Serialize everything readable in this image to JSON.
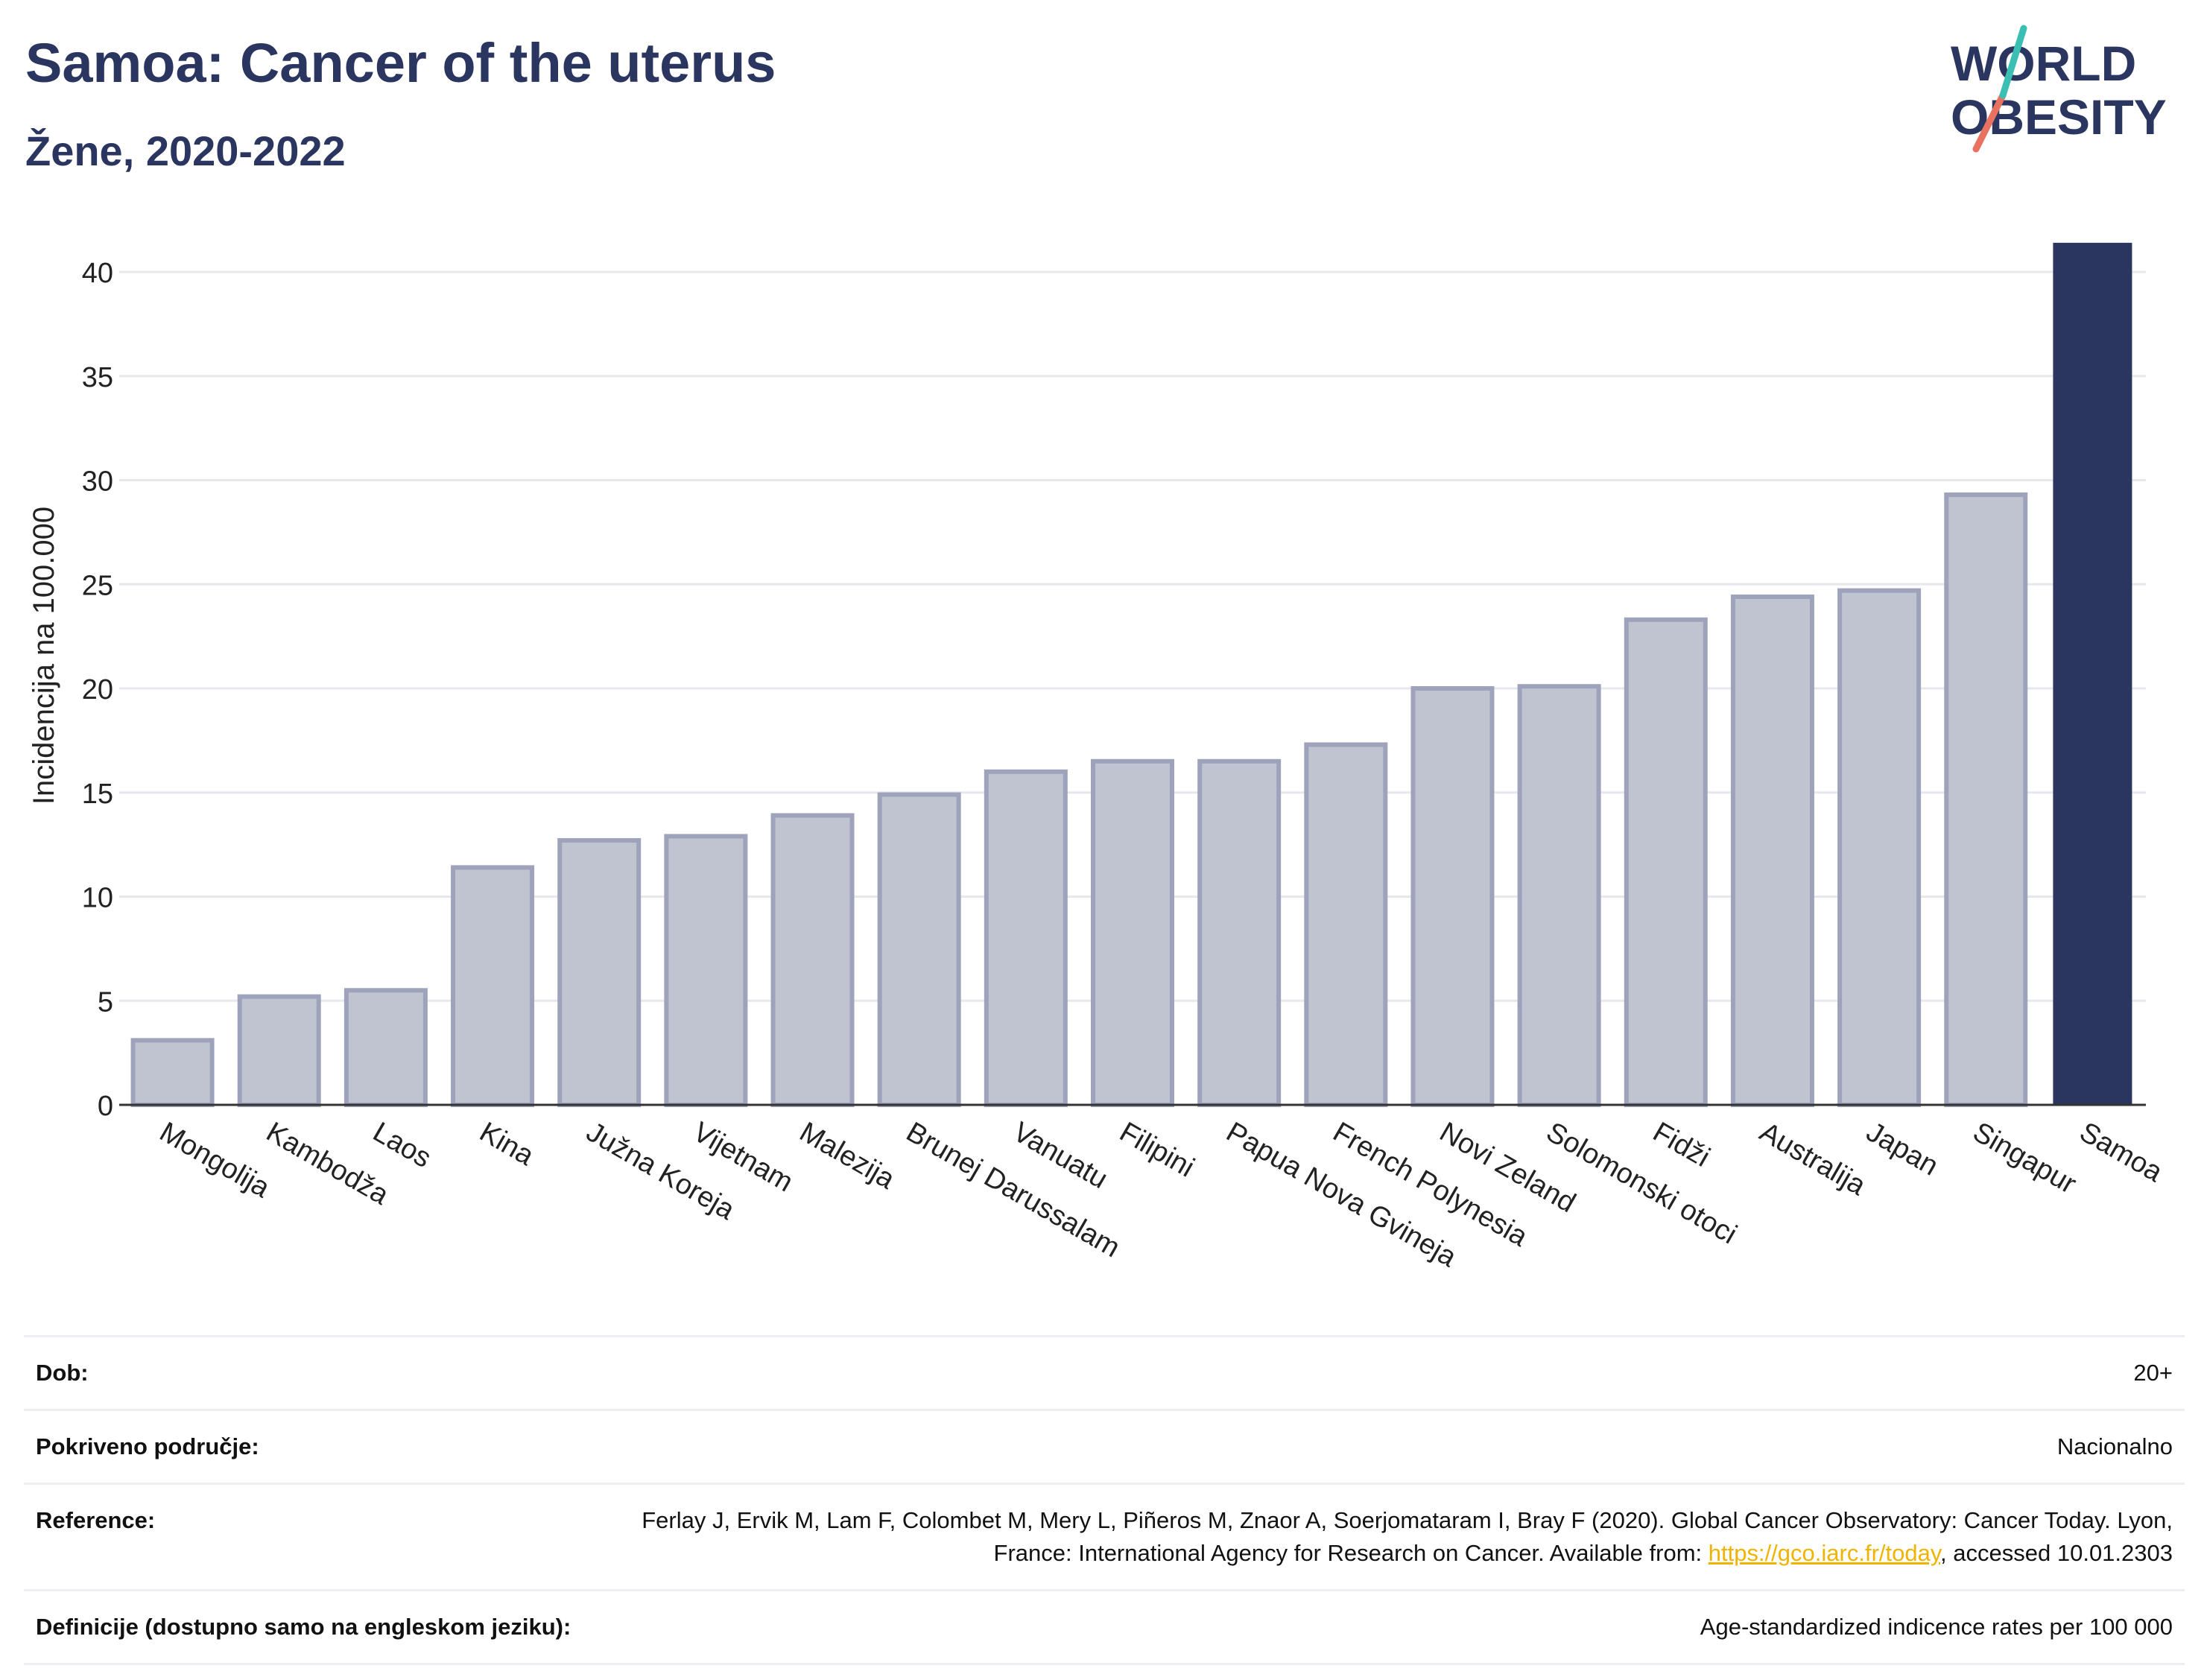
{
  "header": {
    "title": "Samoa: Cancer of the uterus",
    "subtitle": "Žene, 2020-2022"
  },
  "logo": {
    "line1": "WORLD",
    "line2": "OBESITY",
    "colors": [
      "#2a3560",
      "#e8715f",
      "#3cbfb3"
    ]
  },
  "colors": {
    "bar": "#c0c3d0",
    "bar_border": "#9ea3bb",
    "highlight": "#2a3560",
    "title": "#2a3560",
    "link": "#f0b400"
  },
  "chart_data": {
    "type": "bar",
    "title": "Samoa: Cancer of the uterus",
    "subtitle": "Žene, 2020-2022",
    "ylabel": "Incidencija na 100.000",
    "xlabel": "",
    "ylim": [
      0,
      42
    ],
    "yticks": [
      0,
      5,
      10,
      15,
      20,
      25,
      30,
      35,
      40
    ],
    "grid": true,
    "highlight": "Samoa",
    "categories": [
      "Mongolija",
      "Kambodža",
      "Laos",
      "Kina",
      "Južna Koreja",
      "Vijetnam",
      "Malezija",
      "Brunej Darussalam",
      "Vanuatu",
      "Filipini",
      "Papua Nova Gvineja",
      "French Polynesia",
      "Novi Zeland",
      "Solomonski otoci",
      "Fidži",
      "Australija",
      "Japan",
      "Singapur",
      "Samoa"
    ],
    "values": [
      3.1,
      5.2,
      5.5,
      11.4,
      12.7,
      12.9,
      13.9,
      14.9,
      16.0,
      16.5,
      16.5,
      17.3,
      20.0,
      20.1,
      23.3,
      24.4,
      24.7,
      29.3,
      41.4
    ]
  },
  "info": [
    {
      "key": "Dob:",
      "value": "20+"
    },
    {
      "key": "Pokriveno područje:",
      "value": "Nacionalno"
    },
    {
      "key": "Reference:",
      "value_before": "Ferlay J, Ervik M, Lam F, Colombet M, Mery L, Piñeros M, Znaor A, Soerjomataram I, Bray F (2020). Global Cancer Observatory: Cancer Today. Lyon, France: International Agency for Research on Cancer. Available from: ",
      "link": "https://gco.iarc.fr/today",
      "value_after": ", accessed 10.01.2303"
    },
    {
      "key": "Definicije (dostupno samo na engleskom jeziku):",
      "value": "Age-standardized indicence rates per 100 000"
    }
  ]
}
